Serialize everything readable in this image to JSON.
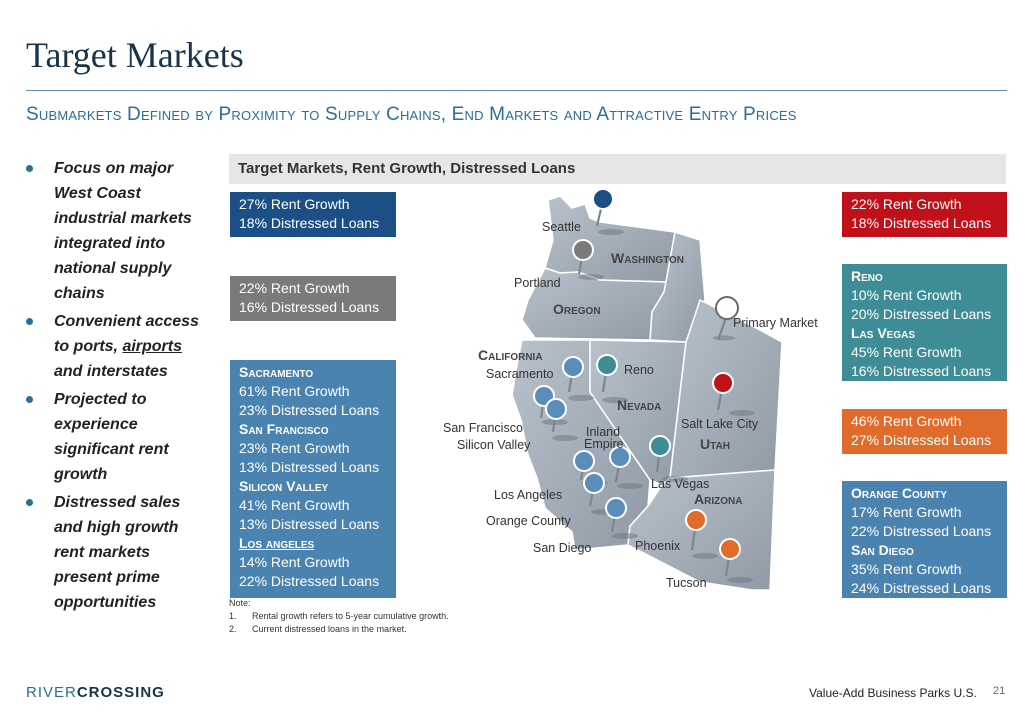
{
  "title": "Target Markets",
  "subtitle": "Submarkets Defined by Proximity to Supply Chains, End Markets and Attractive Entry Prices",
  "bullets": [
    {
      "pre": "Focus on major West Coast industrial markets integrated into national supply chains",
      "link": "",
      "post": ""
    },
    {
      "pre": "Convenient access to ports, ",
      "link": "airports",
      "post": " and interstates"
    },
    {
      "pre": "Projected to experience significant rent growth",
      "link": "",
      "post": ""
    },
    {
      "pre": "Distressed sales and high growth rent markets present prime opportunities",
      "link": "",
      "post": ""
    }
  ],
  "map_header": "Target Markets, Rent Growth, Distressed Loans",
  "boxes": {
    "seattle": {
      "color": "#1c4f86",
      "lines": [
        "27% Rent Growth",
        "18% Distressed Loans"
      ]
    },
    "portland": {
      "color": "#7a7a7a",
      "lines": [
        "22% Rent Growth",
        "16% Distressed Loans"
      ]
    },
    "california": {
      "color": "#4b83b0",
      "groups": [
        {
          "name": "Sacramento",
          "lines": [
            "61% Rent Growth",
            "23% Distressed Loans"
          ]
        },
        {
          "name": "San Francisco",
          "lines": [
            "23% Rent Growth",
            "13% Distressed Loans"
          ]
        },
        {
          "name": "Silicon Valley",
          "lines": [
            "41% Rent Growth",
            "13% Distressed Loans"
          ]
        },
        {
          "name": "Los angeles",
          "lines": [
            "14% Rent Growth",
            "22% Distressed Loans"
          ]
        }
      ]
    },
    "salt_lake": {
      "color": "#c0101a",
      "lines": [
        "22% Rent Growth",
        "18% Distressed Loans"
      ]
    },
    "reno_vegas": {
      "color": "#3e8c95",
      "groups": [
        {
          "name": "Reno",
          "lines": [
            "10% Rent Growth",
            "20% Distressed Loans"
          ]
        },
        {
          "name": "Las Vegas",
          "lines": [
            "45% Rent Growth",
            "16% Distressed Loans"
          ]
        }
      ]
    },
    "arizona": {
      "color": "#e06b2a",
      "lines": [
        "46% Rent Growth",
        "27% Distressed Loans"
      ]
    },
    "orange_sd": {
      "color": "#4b83b0",
      "groups": [
        {
          "name": "Orange County",
          "lines": [
            "17% Rent Growth",
            "22% Distressed Loans"
          ]
        },
        {
          "name": "San Diego",
          "lines": [
            "35% Rent Growth",
            "24% Distressed Loans"
          ]
        }
      ]
    }
  },
  "states": {
    "washington": "Washington",
    "oregon": "Oregon",
    "california": "California",
    "nevada": "Nevada",
    "utah": "Utah",
    "arizona": "Arizona"
  },
  "cities": {
    "seattle": "Seattle",
    "portland": "Portland",
    "sacramento": "Sacramento",
    "reno": "Reno",
    "san_francisco": "San Francisco",
    "silicon_valley": "Silicon Valley",
    "inland": "Inland",
    "empire": "Empire",
    "salt_lake_city": "Salt Lake City",
    "las_vegas": "Las Vegas",
    "los_angeles": "Los Angeles",
    "orange_county": "Orange County",
    "san_diego": "San Diego",
    "phoenix": "Phoenix",
    "tucson": "Tucson"
  },
  "legend_label": "Primary Market",
  "notes": {
    "heading": "Note:",
    "items": [
      {
        "num": "1.",
        "text": "Rental growth refers to 5-year cumulative growth."
      },
      {
        "num": "2.",
        "text": "Current distressed loans in the market."
      }
    ]
  },
  "logo": {
    "part1": "RIVER",
    "part2": "CROSSING"
  },
  "footer": "Value-Add Business Parks U.S.",
  "page_number": "21"
}
